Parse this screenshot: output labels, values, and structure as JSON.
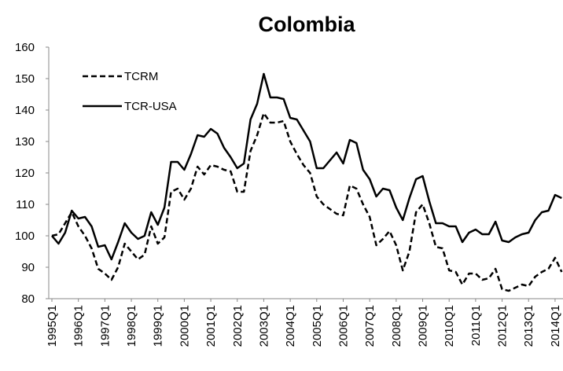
{
  "chart_data": {
    "type": "line",
    "title": "Colombia",
    "categories": [
      "1995Q1",
      null,
      null,
      null,
      "1996Q1",
      null,
      null,
      null,
      "1997Q1",
      null,
      null,
      null,
      "1998Q1",
      null,
      null,
      null,
      "1999Q1",
      null,
      null,
      null,
      "2000Q1",
      null,
      null,
      null,
      "2001Q1",
      null,
      null,
      null,
      "2002Q1",
      null,
      null,
      null,
      "2003Q1",
      null,
      null,
      null,
      "2004Q1",
      null,
      null,
      null,
      "2005Q1",
      null,
      null,
      null,
      "2006Q1",
      null,
      null,
      null,
      "2007Q1",
      null,
      null,
      null,
      "2008Q1",
      null,
      null,
      null,
      "2009Q1",
      null,
      null,
      null,
      "2010Q1",
      null,
      null,
      null,
      "2011Q1",
      null,
      null,
      null,
      "2012Q1",
      null,
      null,
      null,
      "2013Q1",
      null,
      null,
      null,
      "2014Q1",
      null
    ],
    "series": [
      {
        "name": "TCRM",
        "color": "#000000",
        "line_style": "dashed",
        "values": [
          100,
          100.5,
          104,
          107.5,
          103,
          100,
          96,
          89.5,
          88,
          86,
          90,
          97.5,
          95,
          92.5,
          94,
          103,
          97.5,
          99.5,
          114,
          115,
          111.5,
          115,
          122,
          119.5,
          122.5,
          122,
          121,
          120.5,
          114,
          114,
          127,
          132,
          139,
          136,
          136,
          136.5,
          130,
          126,
          122.5,
          120,
          112.5,
          110,
          108.5,
          107,
          106.5,
          116,
          115,
          110,
          106,
          97,
          99,
          101.5,
          97,
          89,
          95,
          107.5,
          110,
          104,
          96.5,
          96,
          89,
          88.5,
          84.5,
          88,
          88,
          86,
          86.5,
          89.5,
          83,
          82.5,
          83.5,
          84.5,
          84,
          87,
          88.5,
          89.5,
          93,
          88.5
        ]
      },
      {
        "name": "TCR-USA",
        "color": "#000000",
        "line_style": "solid",
        "values": [
          100,
          97.5,
          101,
          108,
          105.5,
          106,
          103,
          96.5,
          97,
          92.5,
          98,
          104,
          101,
          99,
          100,
          107.5,
          103.5,
          109,
          123.5,
          123.5,
          121,
          126,
          132,
          131.5,
          134,
          132.5,
          128,
          125,
          121.5,
          123,
          137,
          142,
          151.5,
          144,
          144,
          143.5,
          137.5,
          137,
          133.5,
          130,
          121.5,
          121.5,
          124,
          126.5,
          123,
          130.5,
          129.5,
          121,
          118,
          112.5,
          115,
          114.5,
          109,
          105,
          112,
          118,
          119,
          111,
          104,
          104,
          103,
          103,
          98,
          101,
          102,
          100.5,
          100.5,
          104.5,
          98.5,
          98,
          99.5,
          100.5,
          101,
          105,
          107.5,
          108,
          113,
          112
        ]
      }
    ],
    "ylim": [
      80,
      160
    ],
    "yticks": [
      80,
      90,
      100,
      110,
      120,
      130,
      140,
      150,
      160
    ],
    "grid": false,
    "legend": "upper left"
  }
}
